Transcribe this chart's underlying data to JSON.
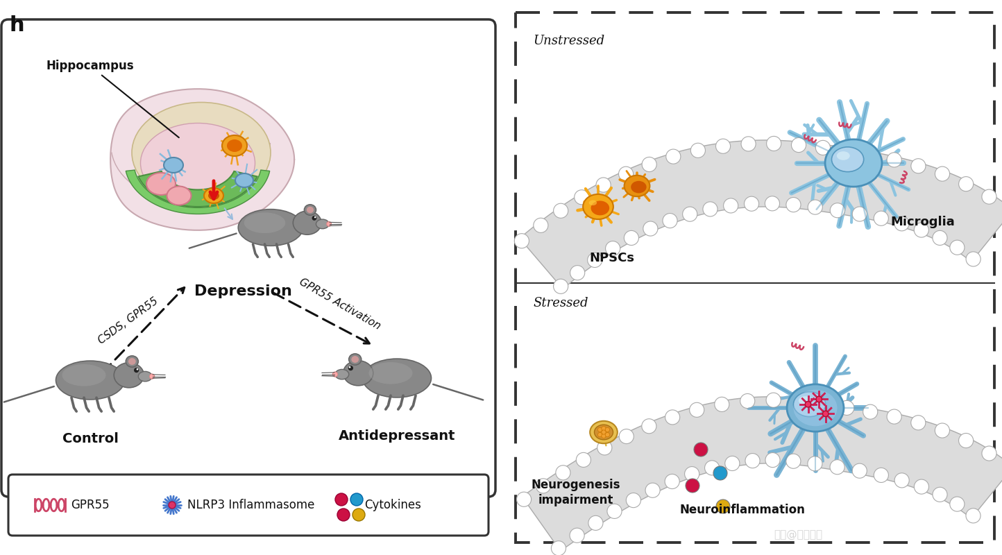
{
  "title_label": "h",
  "bg_color": "#ffffff",
  "left_panel": {
    "box_color": "#222222",
    "brain_label": "Hippocampus",
    "depression_label": "Depression",
    "csds_label": "CSDS, GPR55",
    "gpr55_activation_label": "GPR55 Activation",
    "control_label": "Control",
    "antidepressant_label": "Antidepressant"
  },
  "right_panel": {
    "dashed_box_color": "#333333",
    "unstressed_label": "Unstressed",
    "stressed_label": "Stressed",
    "npcs_label": "NPSCs",
    "microglia_label": "Microglia",
    "neurogenesis_label": "Neurogenesis\nimpairment",
    "neuroinflammation_label": "Neuroinflammation"
  },
  "legend": {
    "gpr55_label": "GPR55",
    "nlrp3_label": "NLRP3 Inflammasome",
    "cytokines_label": "Cytokines"
  },
  "colors": {
    "brain_outer": "#f2e0e6",
    "brain_mid": "#e8d0d8",
    "brain_inner_tan": "#e8dcc0",
    "hippocampus_green": "#6cba5a",
    "neuron_blue_light": "#88c0dd",
    "neuron_blue": "#5baad0",
    "npcs_orange": "#f0a020",
    "npcs_orange_inner": "#e06800",
    "mouse_gray": "#888888",
    "arrow_black": "#111111",
    "red_arrow": "#dd1111",
    "blue_arrow": "#99bbdd",
    "cell_band_gray": "#dcdcdc",
    "cell_white": "#ffffff",
    "microglia_light_blue": "#90c4e0",
    "microglia_body": "#6aadd0",
    "microglia_nucleus": "#b8d8f0",
    "nlrp3_color": "#e03060",
    "cytokine_red": "#cc1144",
    "cytokine_blue": "#2299cc",
    "cytokine_yellow": "#ddaa11",
    "gpr55_pink": "#cc4466"
  }
}
